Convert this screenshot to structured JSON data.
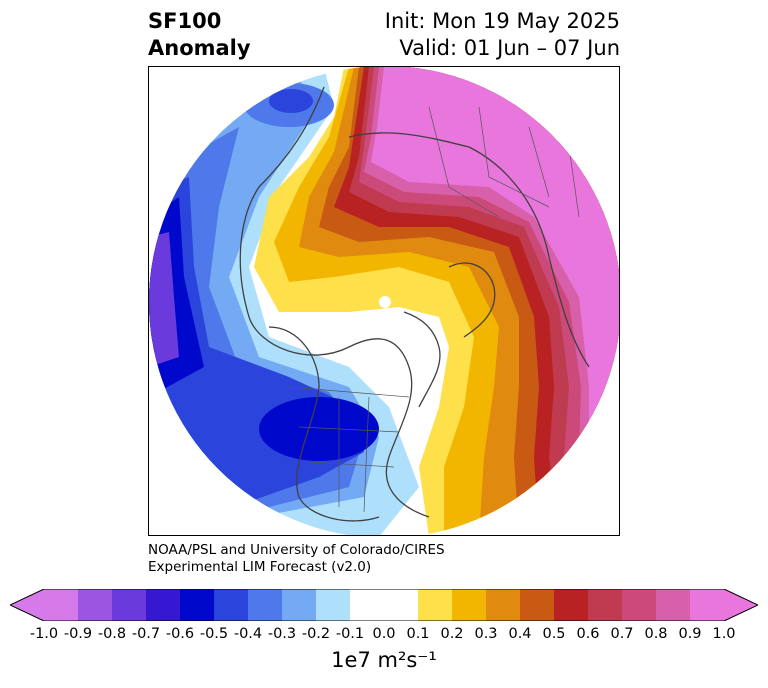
{
  "title": {
    "left_line1": "SF100",
    "left_line2": "Anomaly",
    "right_line1": "Init: Mon 19 May 2025",
    "right_line2": "Valid: 01 Jun – 07 Jun"
  },
  "credit": {
    "line1": "NOAA/PSL and University of Colorado/CIRES",
    "line2": "Experimental LIM Forecast (v2.0)"
  },
  "colorbar": {
    "label": "1e7 m²s⁻¹",
    "ticks": [
      "-1.0",
      "-0.9",
      "-0.8",
      "-0.7",
      "-0.6",
      "-0.5",
      "-0.4",
      "-0.3",
      "-0.2",
      "-0.1",
      "0.0",
      "0.1",
      "0.2",
      "0.3",
      "0.4",
      "0.5",
      "0.6",
      "0.7",
      "0.8",
      "0.9",
      "1.0"
    ],
    "colors": [
      "#d57ae8",
      "#9b55e0",
      "#6a3adc",
      "#3518d0",
      "#0008cc",
      "#2a44dc",
      "#4f78ea",
      "#74aaf4",
      "#aee0fb",
      "#ffffff",
      "#ffffff",
      "#fde04a",
      "#f2b600",
      "#e08a10",
      "#c85a14",
      "#b82222",
      "#c03a50",
      "#cc4a7a",
      "#d860ab",
      "#e876dc"
    ],
    "extend_low": "#d57ae8",
    "extend_high": "#e876dc"
  },
  "map": {
    "projection": "north-polar-stereographic",
    "region": "Northern Hemisphere",
    "variable": "100 hPa streamfunction anomaly"
  }
}
